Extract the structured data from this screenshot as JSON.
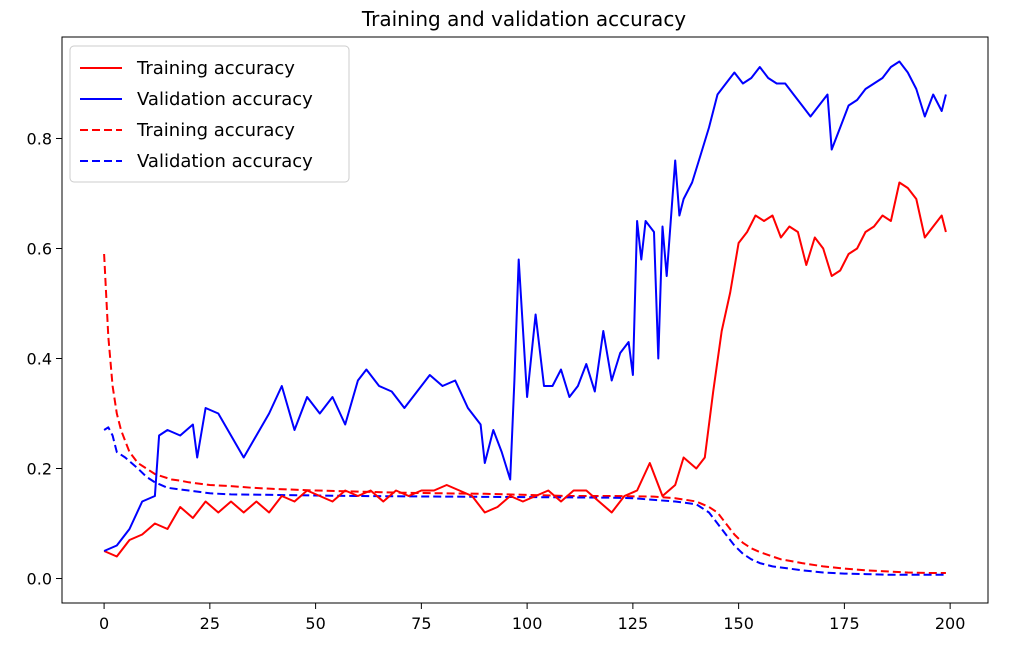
{
  "chart_data": {
    "type": "line",
    "title": "Training and validation accuracy",
    "xlabel": "",
    "ylabel": "",
    "xlim": [
      -9.95,
      208.95
    ],
    "ylim": [
      -0.0445,
      0.9845
    ],
    "x_ticks": [
      0,
      25,
      50,
      75,
      100,
      125,
      150,
      175,
      200
    ],
    "x_tick_labels": [
      "0",
      "25",
      "50",
      "75",
      "100",
      "125",
      "150",
      "175",
      "200"
    ],
    "y_ticks": [
      0.0,
      0.2,
      0.4,
      0.6,
      0.8
    ],
    "y_tick_labels": [
      "0.0",
      "0.2",
      "0.4",
      "0.6",
      "0.8"
    ],
    "grid": false,
    "legend_position": "top-left",
    "legend": [
      {
        "label": "Training accuracy",
        "color": "#ff0000",
        "style": "solid"
      },
      {
        "label": "Validation accuracy",
        "color": "#0000ff",
        "style": "solid"
      },
      {
        "label": "Training accuracy",
        "color": "#ff0000",
        "style": "dashed"
      },
      {
        "label": "Validation accuracy",
        "color": "#0000ff",
        "style": "dashed"
      }
    ],
    "series": [
      {
        "color": "#ff0000",
        "style": "solid",
        "x": [
          0,
          3,
          6,
          9,
          12,
          15,
          18,
          21,
          24,
          27,
          30,
          33,
          36,
          39,
          42,
          45,
          48,
          51,
          54,
          57,
          60,
          63,
          66,
          69,
          72,
          75,
          78,
          81,
          84,
          87,
          90,
          93,
          96,
          99,
          102,
          105,
          108,
          111,
          114,
          117,
          120,
          123,
          126,
          129,
          132,
          135,
          137,
          140,
          142,
          144,
          146,
          148,
          150,
          152,
          154,
          156,
          158,
          160,
          162,
          164,
          166,
          168,
          170,
          172,
          174,
          176,
          178,
          180,
          182,
          184,
          186,
          188,
          190,
          192,
          194,
          196,
          198,
          199
        ],
        "y": [
          0.05,
          0.04,
          0.07,
          0.08,
          0.1,
          0.09,
          0.13,
          0.11,
          0.14,
          0.12,
          0.14,
          0.12,
          0.14,
          0.12,
          0.15,
          0.14,
          0.16,
          0.15,
          0.14,
          0.16,
          0.15,
          0.16,
          0.14,
          0.16,
          0.15,
          0.16,
          0.16,
          0.17,
          0.16,
          0.15,
          0.12,
          0.13,
          0.15,
          0.14,
          0.15,
          0.16,
          0.14,
          0.16,
          0.16,
          0.14,
          0.12,
          0.15,
          0.16,
          0.21,
          0.15,
          0.17,
          0.22,
          0.2,
          0.22,
          0.34,
          0.45,
          0.52,
          0.61,
          0.63,
          0.66,
          0.65,
          0.66,
          0.62,
          0.64,
          0.63,
          0.57,
          0.62,
          0.6,
          0.55,
          0.56,
          0.59,
          0.6,
          0.63,
          0.64,
          0.66,
          0.65,
          0.72,
          0.71,
          0.69,
          0.62,
          0.64,
          0.66,
          0.63
        ]
      },
      {
        "color": "#0000ff",
        "style": "solid",
        "x": [
          0,
          3,
          6,
          9,
          12,
          13,
          15,
          18,
          21,
          22,
          24,
          27,
          30,
          33,
          36,
          39,
          42,
          45,
          48,
          51,
          54,
          57,
          60,
          62,
          65,
          68,
          71,
          74,
          77,
          80,
          83,
          86,
          89,
          90,
          92,
          94,
          96,
          97,
          98,
          100,
          102,
          104,
          106,
          108,
          110,
          112,
          114,
          116,
          118,
          120,
          122,
          124,
          125,
          126,
          127,
          128,
          130,
          131,
          132,
          133,
          135,
          136,
          137,
          139,
          141,
          143,
          145,
          147,
          149,
          151,
          153,
          155,
          157,
          159,
          161,
          163,
          165,
          167,
          169,
          171,
          172,
          174,
          176,
          178,
          180,
          182,
          184,
          186,
          188,
          190,
          192,
          194,
          196,
          198,
          199
        ],
        "y": [
          0.05,
          0.06,
          0.09,
          0.14,
          0.15,
          0.26,
          0.27,
          0.26,
          0.28,
          0.22,
          0.31,
          0.3,
          0.26,
          0.22,
          0.26,
          0.3,
          0.35,
          0.27,
          0.33,
          0.3,
          0.33,
          0.28,
          0.36,
          0.38,
          0.35,
          0.34,
          0.31,
          0.34,
          0.37,
          0.35,
          0.36,
          0.31,
          0.28,
          0.21,
          0.27,
          0.23,
          0.18,
          0.36,
          0.58,
          0.33,
          0.48,
          0.35,
          0.35,
          0.38,
          0.33,
          0.35,
          0.39,
          0.34,
          0.45,
          0.36,
          0.41,
          0.43,
          0.37,
          0.65,
          0.58,
          0.65,
          0.63,
          0.4,
          0.64,
          0.55,
          0.76,
          0.66,
          0.69,
          0.72,
          0.77,
          0.82,
          0.88,
          0.9,
          0.92,
          0.9,
          0.91,
          0.93,
          0.91,
          0.9,
          0.9,
          0.88,
          0.86,
          0.84,
          0.86,
          0.88,
          0.78,
          0.82,
          0.86,
          0.87,
          0.89,
          0.9,
          0.91,
          0.93,
          0.94,
          0.92,
          0.89,
          0.84,
          0.88,
          0.85,
          0.88
        ]
      },
      {
        "color": "#ff0000",
        "style": "dashed",
        "x": [
          0,
          1,
          2,
          3,
          4,
          5,
          6,
          7,
          8,
          10,
          12,
          14,
          16,
          18,
          20,
          25,
          30,
          35,
          40,
          50,
          60,
          70,
          80,
          90,
          100,
          110,
          120,
          130,
          135,
          140,
          143,
          145,
          147,
          149,
          151,
          153,
          155,
          158,
          160,
          165,
          170,
          175,
          180,
          185,
          190,
          195,
          199
        ],
        "y": [
          0.59,
          0.44,
          0.35,
          0.3,
          0.27,
          0.25,
          0.23,
          0.22,
          0.21,
          0.2,
          0.19,
          0.185,
          0.18,
          0.178,
          0.175,
          0.17,
          0.168,
          0.165,
          0.163,
          0.16,
          0.158,
          0.156,
          0.155,
          0.154,
          0.152,
          0.15,
          0.15,
          0.149,
          0.146,
          0.14,
          0.13,
          0.12,
          0.1,
          0.08,
          0.065,
          0.055,
          0.048,
          0.04,
          0.035,
          0.028,
          0.022,
          0.018,
          0.015,
          0.013,
          0.011,
          0.01,
          0.01
        ]
      },
      {
        "color": "#0000ff",
        "style": "dashed",
        "x": [
          0,
          1,
          2,
          3,
          5,
          8,
          10,
          12,
          15,
          20,
          25,
          30,
          40,
          50,
          60,
          80,
          100,
          120,
          125,
          130,
          135,
          140,
          143,
          145,
          147,
          149,
          151,
          153,
          155,
          158,
          160,
          165,
          170,
          175,
          180,
          185,
          190,
          195,
          199
        ],
        "y": [
          0.27,
          0.275,
          0.26,
          0.23,
          0.22,
          0.2,
          0.185,
          0.175,
          0.165,
          0.16,
          0.155,
          0.153,
          0.152,
          0.151,
          0.15,
          0.149,
          0.148,
          0.147,
          0.146,
          0.143,
          0.14,
          0.135,
          0.12,
          0.1,
          0.08,
          0.06,
          0.045,
          0.035,
          0.028,
          0.022,
          0.02,
          0.015,
          0.011,
          0.009,
          0.008,
          0.007,
          0.007,
          0.007,
          0.007
        ]
      }
    ]
  }
}
